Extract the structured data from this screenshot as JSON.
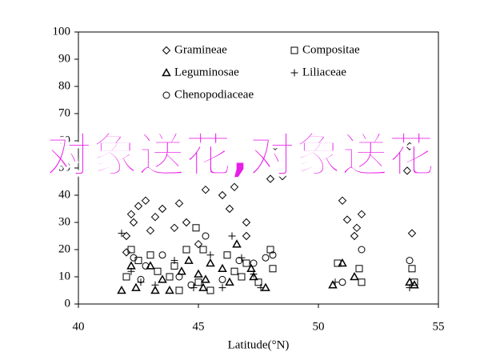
{
  "chart_data": {
    "type": "scatter",
    "xlabel": "Latitude(°N)",
    "xlim": [
      40,
      55
    ],
    "xticks": [
      40,
      45,
      50,
      55
    ],
    "ylim": [
      0,
      100
    ],
    "yticks": [
      0,
      10,
      20,
      30,
      40,
      50,
      60,
      70,
      80,
      90,
      100
    ],
    "grid": false,
    "annotations": [
      "对象送花,对象送花"
    ],
    "series": [
      {
        "name": "Gramineae",
        "marker": "diamond",
        "color": "#000000",
        "x": [
          42,
          42.2,
          42.5,
          42.8,
          42.3,
          43,
          43.2,
          43.5,
          44,
          44.2,
          45,
          46,
          46.5,
          47,
          47,
          48,
          48.5,
          51,
          51.2,
          51.8,
          51.5,
          51.6,
          53.8,
          53.7,
          53.9,
          42,
          44.5,
          45.3,
          46.3,
          48.2
        ],
        "values": [
          25,
          33,
          36,
          38,
          30,
          27,
          32,
          35,
          28,
          37,
          22,
          40,
          43,
          30,
          25,
          46,
          47,
          38,
          31,
          33,
          25,
          28,
          58,
          49,
          26,
          19,
          30,
          42,
          35,
          58
        ]
      },
      {
        "name": "Compositae",
        "marker": "square",
        "color": "#000000",
        "x": [
          42,
          42.2,
          42.5,
          43,
          43.3,
          43.8,
          44,
          44.5,
          44.9,
          45,
          45.2,
          45.5,
          46.2,
          46.5,
          47,
          47.5,
          48,
          48.1,
          50.8,
          51.7,
          51.8,
          53.9,
          54,
          44.2,
          46.8
        ],
        "values": [
          10,
          20,
          16,
          18,
          12,
          10,
          14,
          20,
          28,
          8,
          20,
          5,
          18,
          12,
          15,
          8,
          20,
          13,
          15,
          13,
          8,
          13,
          8,
          5,
          10
        ]
      },
      {
        "name": "Leguminosae",
        "marker": "triangle",
        "color": "#000000",
        "x": [
          41.8,
          42.2,
          42.4,
          43,
          43.5,
          43.8,
          44.3,
          44.6,
          45,
          45.3,
          45.5,
          46,
          46.3,
          46.6,
          47.2,
          47.3,
          47.8,
          50.6,
          51,
          51.5,
          53.8,
          54,
          45.2,
          43.2
        ],
        "values": [
          5,
          14,
          6,
          14,
          9,
          5,
          12,
          16,
          11,
          9,
          15,
          13,
          8,
          22,
          13,
          10,
          6,
          7,
          15,
          10,
          8,
          7,
          6,
          5
        ]
      },
      {
        "name": "Liliaceae",
        "marker": "plus",
        "color": "#000000",
        "x": [
          41.8,
          42.2,
          42.6,
          43.2,
          44.8,
          45.5,
          46,
          46.4,
          46.8,
          47.3,
          47.6,
          50.7,
          53.8,
          44
        ],
        "values": [
          26,
          12,
          8,
          7,
          6,
          18,
          6,
          25,
          17,
          11,
          6,
          8,
          6,
          16
        ]
      },
      {
        "name": "Chenopodiaceae",
        "marker": "circle",
        "color": "#000000",
        "x": [
          42.3,
          42.8,
          43.5,
          44.2,
          44.7,
          45.3,
          46,
          46.7,
          47.3,
          47.8,
          48.1,
          51,
          51.8,
          53.8,
          42.6
        ],
        "values": [
          17,
          14,
          18,
          10,
          7,
          25,
          9,
          16,
          15,
          17,
          18,
          8,
          20,
          16,
          9
        ]
      }
    ]
  }
}
